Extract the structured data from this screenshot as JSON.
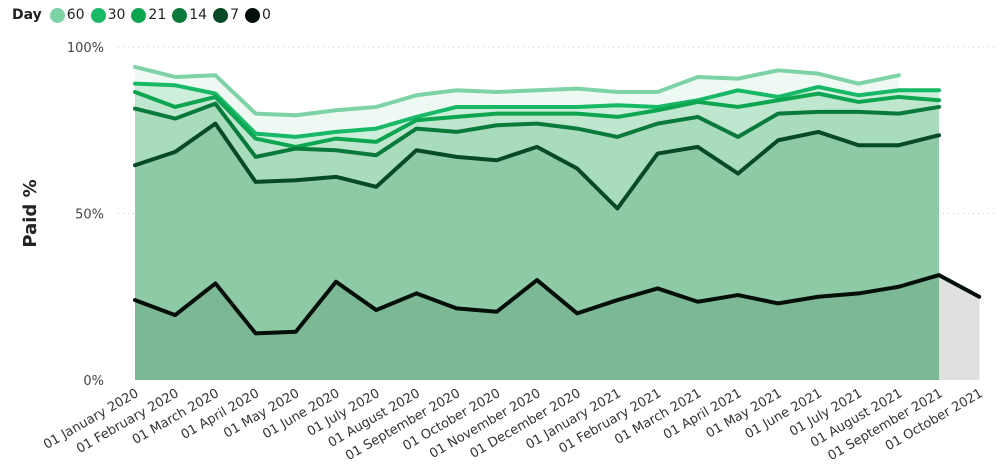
{
  "chart_data": {
    "type": "area",
    "title": "",
    "xlabel": "",
    "ylabel": "Paid %",
    "ylim": [
      0,
      100
    ],
    "yticks": [
      "0%",
      "50%",
      "100%"
    ],
    "grid": true,
    "legend_title": "Day",
    "legend_placement": "top-left",
    "categories": [
      "01 January 2020",
      "01 February 2020",
      "01 March 2020",
      "01 April 2020",
      "01 May 2020",
      "01 June 2020",
      "01 July 2020",
      "01 August 2020",
      "01 September 2020",
      "01 October 2020",
      "01 November 2020",
      "01 December 2020",
      "01 January 2021",
      "01 February 2021",
      "01 March 2021",
      "01 April 2021",
      "01 May 2021",
      "01 June 2021",
      "01 July 2021",
      "01 August 2021",
      "01 September 2021",
      "01 October 2021"
    ],
    "series": [
      {
        "name": "60",
        "color": "#7ed3a6",
        "values": [
          94,
          91,
          91.5,
          80,
          79.5,
          81,
          82,
          85.5,
          87,
          86.5,
          87,
          87.5,
          86.5,
          86.5,
          91,
          90.5,
          93,
          92,
          89,
          91.5,
          null,
          null
        ]
      },
      {
        "name": "30",
        "color": "#17b866",
        "values": [
          89,
          88.5,
          86,
          74,
          73,
          74.5,
          75.5,
          79,
          82,
          82,
          82,
          82,
          82.5,
          82,
          84,
          87,
          85,
          88,
          85.5,
          87,
          87,
          null
        ]
      },
      {
        "name": "21",
        "color": "#0ea550",
        "values": [
          86.5,
          82,
          85,
          72.5,
          70,
          72.5,
          71.5,
          78,
          79,
          80,
          80,
          80,
          79,
          81,
          83.5,
          82,
          84,
          86,
          83.5,
          85,
          84,
          null
        ]
      },
      {
        "name": "14",
        "color": "#0a7a3a",
        "values": [
          81.5,
          78.5,
          83,
          67,
          69.5,
          69,
          67.5,
          75.5,
          74.5,
          76.5,
          77,
          75.5,
          73,
          77,
          79,
          73,
          80,
          80.5,
          80.5,
          80,
          82,
          null
        ]
      },
      {
        "name": "7",
        "color": "#094a26",
        "values": [
          64.5,
          68.5,
          77,
          59.5,
          60,
          61,
          58,
          69,
          67,
          66,
          70,
          63.5,
          51.5,
          68,
          70,
          62,
          72,
          74.5,
          70.5,
          70.5,
          73.5,
          null
        ]
      },
      {
        "name": "0",
        "color": "#050f09",
        "values": [
          24,
          19.5,
          29,
          14,
          14.5,
          29.5,
          21,
          26,
          21.5,
          20.5,
          30,
          20,
          24,
          27.5,
          23.5,
          25.5,
          23,
          25,
          26,
          28,
          31.5,
          25
        ]
      }
    ]
  }
}
